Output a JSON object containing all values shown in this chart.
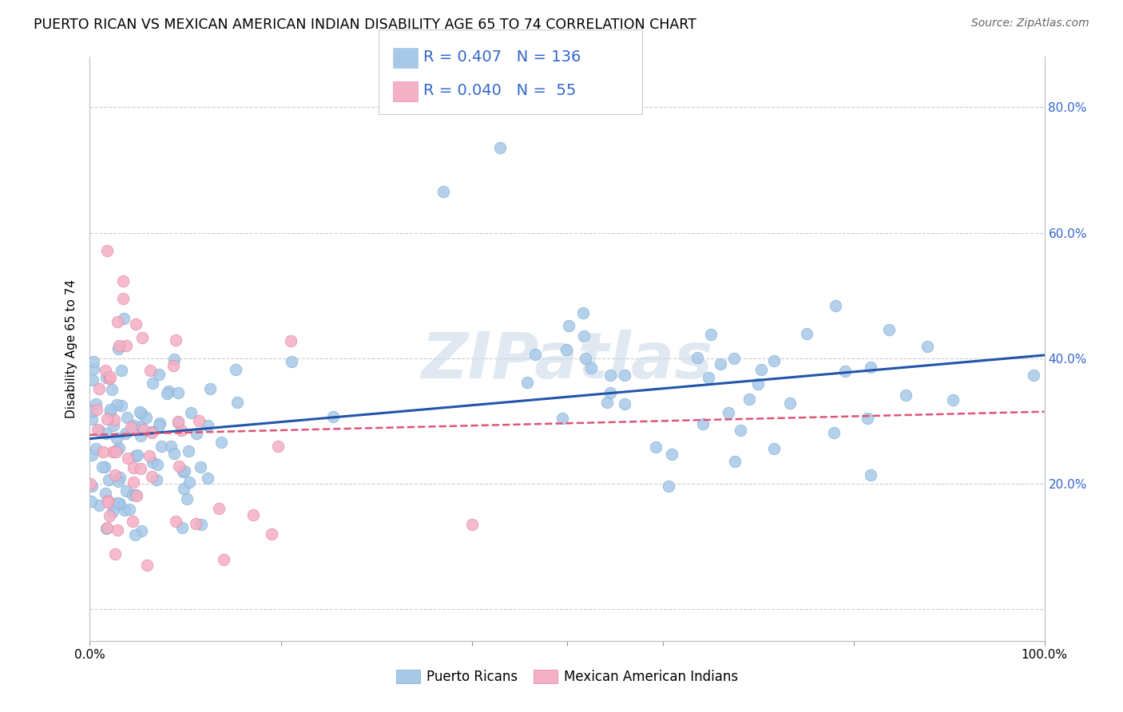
{
  "title": "PUERTO RICAN VS MEXICAN AMERICAN INDIAN DISABILITY AGE 65 TO 74 CORRELATION CHART",
  "source": "Source: ZipAtlas.com",
  "ylabel": "Disability Age 65 to 74",
  "xlim": [
    0,
    1
  ],
  "ylim": [
    -0.05,
    0.88
  ],
  "ytick_positions": [
    0.0,
    0.2,
    0.4,
    0.6,
    0.8
  ],
  "yticklabels_right": [
    "",
    "20.0%",
    "40.0%",
    "60.0%",
    "80.0%"
  ],
  "pr_color": "#a8c8e8",
  "pr_edge_color": "#7aaed0",
  "pr_line_color": "#2255aa",
  "mai_color": "#f4b0c4",
  "mai_edge_color": "#e080a0",
  "mai_line_color": "#dd5577",
  "pr_R": 0.407,
  "pr_N": 136,
  "mai_R": 0.04,
  "mai_N": 55,
  "watermark": "ZIPatlas",
  "background_color": "white",
  "grid_color": "#cccccc",
  "title_fontsize": 12.5,
  "axis_label_fontsize": 11,
  "tick_fontsize": 11,
  "legend_fontsize": 14,
  "legend_text_color": "#3366cc",
  "right_ytick_color": "#3366cc",
  "pr_seed": 7,
  "mai_seed": 13
}
